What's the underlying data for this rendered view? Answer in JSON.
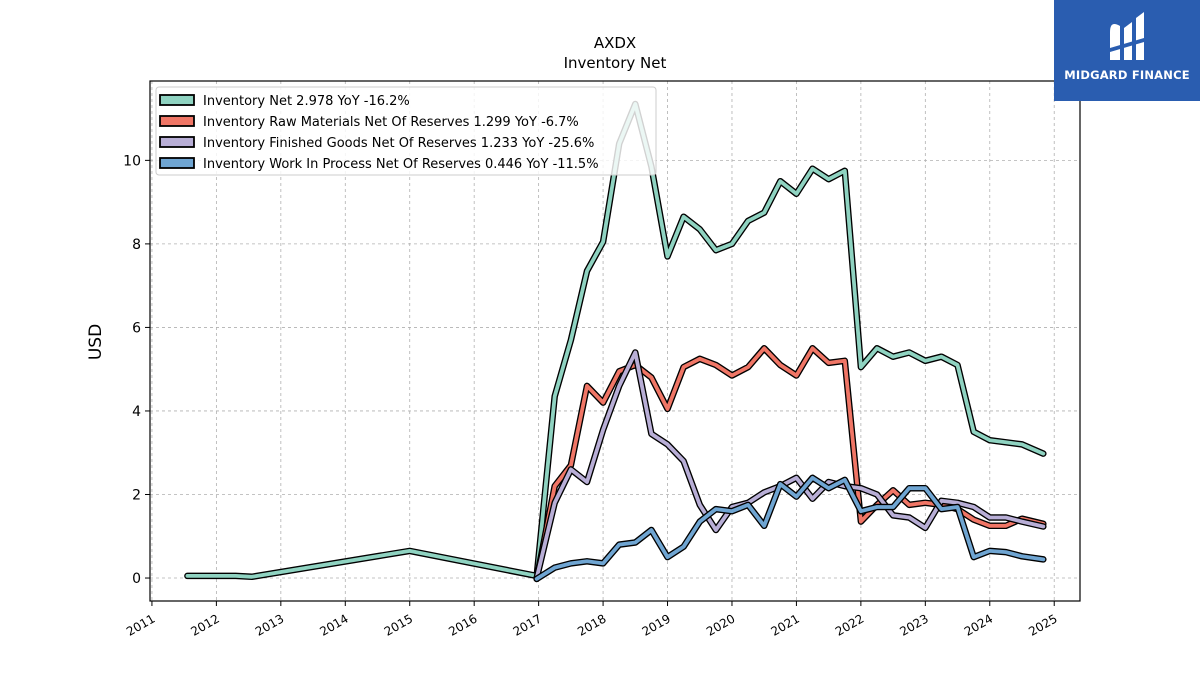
{
  "chart_data": {
    "type": "line",
    "title": "AXDX",
    "subtitle": "Inventory Net",
    "ylabel": "USD",
    "xlabel": "",
    "xlim": [
      2010.97,
      2025.4
    ],
    "ylim": [
      -0.55,
      11.9
    ],
    "x_ticks": [
      2011,
      2012,
      2013,
      2014,
      2015,
      2016,
      2017,
      2018,
      2019,
      2020,
      2021,
      2022,
      2023,
      2024,
      2025
    ],
    "y_ticks": [
      0,
      2,
      4,
      6,
      8,
      10
    ],
    "grid": true,
    "legend_position": "top-left",
    "series": [
      {
        "name": "Inventory Net  2.978 YoY -16.2%",
        "color": "#8fd3c1",
        "points": [
          [
            2011.55,
            0.05
          ],
          [
            2012.3,
            0.05
          ],
          [
            2012.55,
            0.03
          ],
          [
            2015.0,
            0.65
          ],
          [
            2016.97,
            0.05
          ],
          [
            2017.25,
            4.35
          ],
          [
            2017.5,
            5.7
          ],
          [
            2017.75,
            7.35
          ],
          [
            2018.0,
            8.05
          ],
          [
            2018.25,
            10.4
          ],
          [
            2018.5,
            11.35
          ],
          [
            2018.75,
            9.85
          ],
          [
            2019.0,
            7.7
          ],
          [
            2019.25,
            8.65
          ],
          [
            2019.5,
            8.35
          ],
          [
            2019.75,
            7.85
          ],
          [
            2020.0,
            8.0
          ],
          [
            2020.25,
            8.55
          ],
          [
            2020.5,
            8.75
          ],
          [
            2020.75,
            9.5
          ],
          [
            2021.0,
            9.2
          ],
          [
            2021.25,
            9.8
          ],
          [
            2021.5,
            9.55
          ],
          [
            2021.75,
            9.75
          ],
          [
            2022.0,
            5.05
          ],
          [
            2022.25,
            5.5
          ],
          [
            2022.5,
            5.3
          ],
          [
            2022.75,
            5.4
          ],
          [
            2023.0,
            5.2
          ],
          [
            2023.25,
            5.3
          ],
          [
            2023.5,
            5.1
          ],
          [
            2023.75,
            3.5
          ],
          [
            2024.0,
            3.3
          ],
          [
            2024.25,
            3.25
          ],
          [
            2024.5,
            3.2
          ],
          [
            2024.83,
            2.978
          ]
        ]
      },
      {
        "name": "Inventory Raw Materials Net Of Reserves  1.299 YoY -6.7%",
        "color": "#f07666",
        "points": [
          [
            2016.97,
            -0.02
          ],
          [
            2017.25,
            2.2
          ],
          [
            2017.5,
            2.7
          ],
          [
            2017.75,
            4.6
          ],
          [
            2018.0,
            4.2
          ],
          [
            2018.25,
            4.95
          ],
          [
            2018.5,
            5.1
          ],
          [
            2018.75,
            4.8
          ],
          [
            2019.0,
            4.05
          ],
          [
            2019.25,
            5.05
          ],
          [
            2019.5,
            5.25
          ],
          [
            2019.75,
            5.1
          ],
          [
            2020.0,
            4.85
          ],
          [
            2020.25,
            5.05
          ],
          [
            2020.5,
            5.5
          ],
          [
            2020.75,
            5.1
          ],
          [
            2021.0,
            4.85
          ],
          [
            2021.25,
            5.5
          ],
          [
            2021.5,
            5.15
          ],
          [
            2021.75,
            5.2
          ],
          [
            2022.0,
            1.35
          ],
          [
            2022.25,
            1.75
          ],
          [
            2022.5,
            2.1
          ],
          [
            2022.75,
            1.75
          ],
          [
            2023.0,
            1.8
          ],
          [
            2023.25,
            1.75
          ],
          [
            2023.5,
            1.65
          ],
          [
            2023.75,
            1.4
          ],
          [
            2024.0,
            1.25
          ],
          [
            2024.25,
            1.25
          ],
          [
            2024.5,
            1.42
          ],
          [
            2024.83,
            1.299
          ]
        ]
      },
      {
        "name": "Inventory Finished Goods Net Of Reserves  1.233 YoY -25.6%",
        "color": "#b8aed6",
        "points": [
          [
            2016.97,
            0.0
          ],
          [
            2017.25,
            1.8
          ],
          [
            2017.5,
            2.6
          ],
          [
            2017.75,
            2.3
          ],
          [
            2018.0,
            3.55
          ],
          [
            2018.25,
            4.6
          ],
          [
            2018.5,
            5.4
          ],
          [
            2018.75,
            3.45
          ],
          [
            2019.0,
            3.2
          ],
          [
            2019.25,
            2.8
          ],
          [
            2019.5,
            1.75
          ],
          [
            2019.75,
            1.15
          ],
          [
            2020.0,
            1.7
          ],
          [
            2020.25,
            1.8
          ],
          [
            2020.5,
            2.05
          ],
          [
            2020.75,
            2.2
          ],
          [
            2021.0,
            2.4
          ],
          [
            2021.25,
            1.9
          ],
          [
            2021.5,
            2.3
          ],
          [
            2021.75,
            2.2
          ],
          [
            2022.0,
            2.15
          ],
          [
            2022.25,
            2.0
          ],
          [
            2022.5,
            1.5
          ],
          [
            2022.75,
            1.45
          ],
          [
            2023.0,
            1.2
          ],
          [
            2023.25,
            1.85
          ],
          [
            2023.5,
            1.8
          ],
          [
            2023.75,
            1.7
          ],
          [
            2024.0,
            1.45
          ],
          [
            2024.25,
            1.45
          ],
          [
            2024.5,
            1.35
          ],
          [
            2024.83,
            1.233
          ]
        ]
      },
      {
        "name": "Inventory Work In Process Net Of Reserves  0.446 YoY -11.5%",
        "color": "#6fa5d2",
        "points": [
          [
            2016.97,
            -0.02
          ],
          [
            2017.25,
            0.25
          ],
          [
            2017.5,
            0.35
          ],
          [
            2017.75,
            0.4
          ],
          [
            2018.0,
            0.35
          ],
          [
            2018.25,
            0.8
          ],
          [
            2018.5,
            0.85
          ],
          [
            2018.75,
            1.15
          ],
          [
            2019.0,
            0.5
          ],
          [
            2019.25,
            0.75
          ],
          [
            2019.5,
            1.35
          ],
          [
            2019.75,
            1.65
          ],
          [
            2020.0,
            1.6
          ],
          [
            2020.25,
            1.75
          ],
          [
            2020.5,
            1.25
          ],
          [
            2020.75,
            2.25
          ],
          [
            2021.0,
            1.95
          ],
          [
            2021.25,
            2.4
          ],
          [
            2021.5,
            2.15
          ],
          [
            2021.75,
            2.35
          ],
          [
            2022.0,
            1.6
          ],
          [
            2022.25,
            1.7
          ],
          [
            2022.5,
            1.7
          ],
          [
            2022.75,
            2.15
          ],
          [
            2023.0,
            2.15
          ],
          [
            2023.25,
            1.65
          ],
          [
            2023.5,
            1.7
          ],
          [
            2023.75,
            0.5
          ],
          [
            2024.0,
            0.65
          ],
          [
            2024.25,
            0.62
          ],
          [
            2024.5,
            0.52
          ],
          [
            2024.83,
            0.446
          ]
        ]
      }
    ]
  },
  "logo": {
    "text": "MIDGARD FINANCE",
    "icon": "midgard-logo-icon"
  }
}
